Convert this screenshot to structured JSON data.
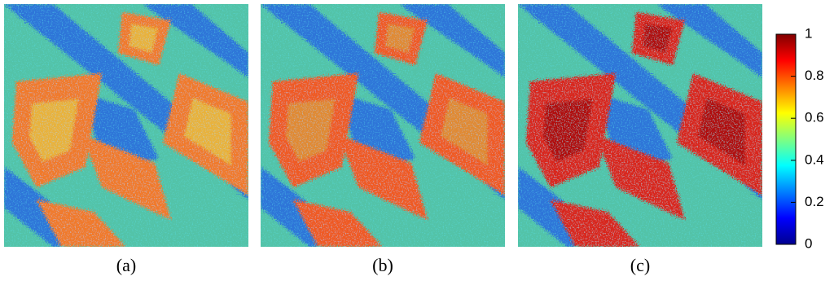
{
  "panels": [
    {
      "label": "(a)"
    },
    {
      "label": "(b)"
    },
    {
      "label": "(c)"
    }
  ],
  "colorbar": {
    "lim": [
      0,
      1
    ],
    "ticks": [
      0,
      0.2,
      0.4,
      0.6,
      0.8,
      1
    ]
  }
}
